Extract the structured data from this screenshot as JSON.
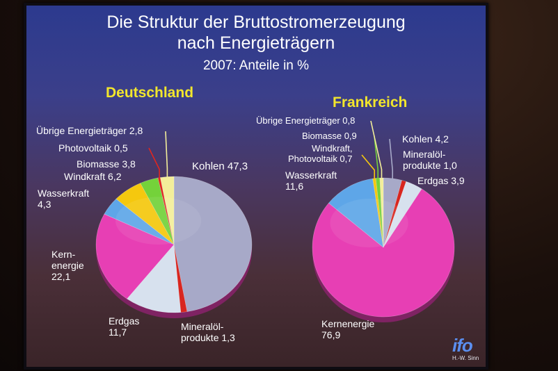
{
  "title_line1": "Die Struktur der Bruttostromerzeugung",
  "title_line2": "nach Energieträgern",
  "subtitle": "2007: Anteile in %",
  "logo": "ifo",
  "author": "H.-W. Sinn",
  "chart_data": [
    {
      "type": "pie",
      "title": "Deutschland",
      "slices": [
        {
          "name": "Kohlen",
          "value": 47.3,
          "color": "#a7a9c8",
          "label": "Kohlen 47,3"
        },
        {
          "name": "Mineralölprodukte",
          "value": 1.3,
          "color": "#d8261f",
          "label": "Mineralöl-\nprodukte 1,3"
        },
        {
          "name": "Erdgas",
          "value": 11.7,
          "color": "#d7e1ee",
          "label": "Erdgas\n11,7"
        },
        {
          "name": "Kernenergie",
          "value": 22.1,
          "color": "#e73fb4",
          "label": "Kern-\nenergie\n22,1"
        },
        {
          "name": "Wasserkraft",
          "value": 4.3,
          "color": "#5ea6e8",
          "label": "Wasserkraft\n4,3"
        },
        {
          "name": "Windkraft",
          "value": 6.2,
          "color": "#f5c80e",
          "label": "Windkraft 6,2"
        },
        {
          "name": "Biomasse",
          "value": 3.8,
          "color": "#74d23a",
          "label": "Biomasse 3,8"
        },
        {
          "name": "Photovoltaik",
          "value": 0.5,
          "color": "#e0261f",
          "label": "Photovoltaik 0,5"
        },
        {
          "name": "Übrige Energieträger",
          "value": 2.8,
          "color": "#f3ee9a",
          "label": "Übrige Energieträger 2,8"
        }
      ]
    },
    {
      "type": "pie",
      "title": "Frankreich",
      "slices": [
        {
          "name": "Kohlen",
          "value": 4.2,
          "color": "#a7a9c8",
          "label": "Kohlen 4,2"
        },
        {
          "name": "Mineralölprodukte",
          "value": 1.0,
          "color": "#d8261f",
          "label": "Mineralöl-\nprodukte 1,0"
        },
        {
          "name": "Erdgas",
          "value": 3.9,
          "color": "#d7e1ee",
          "label": "Erdgas 3,9"
        },
        {
          "name": "Kernenergie",
          "value": 76.9,
          "color": "#e73fb4",
          "label": "Kernenergie\n76,9"
        },
        {
          "name": "Wasserkraft",
          "value": 11.6,
          "color": "#5ea6e8",
          "label": "Wasserkraft\n11,6"
        },
        {
          "name": "Windkraft, Photovoltaik",
          "value": 0.7,
          "color": "#f5c80e",
          "label": "Windkraft,\nPhotovoltaik 0,7"
        },
        {
          "name": "Biomasse",
          "value": 0.9,
          "color": "#74d23a",
          "label": "Biomasse 0,9"
        },
        {
          "name": "Übrige Energieträger",
          "value": 0.8,
          "color": "#f3ee9a",
          "label": "Übrige Energieträger 0,8"
        }
      ]
    }
  ]
}
